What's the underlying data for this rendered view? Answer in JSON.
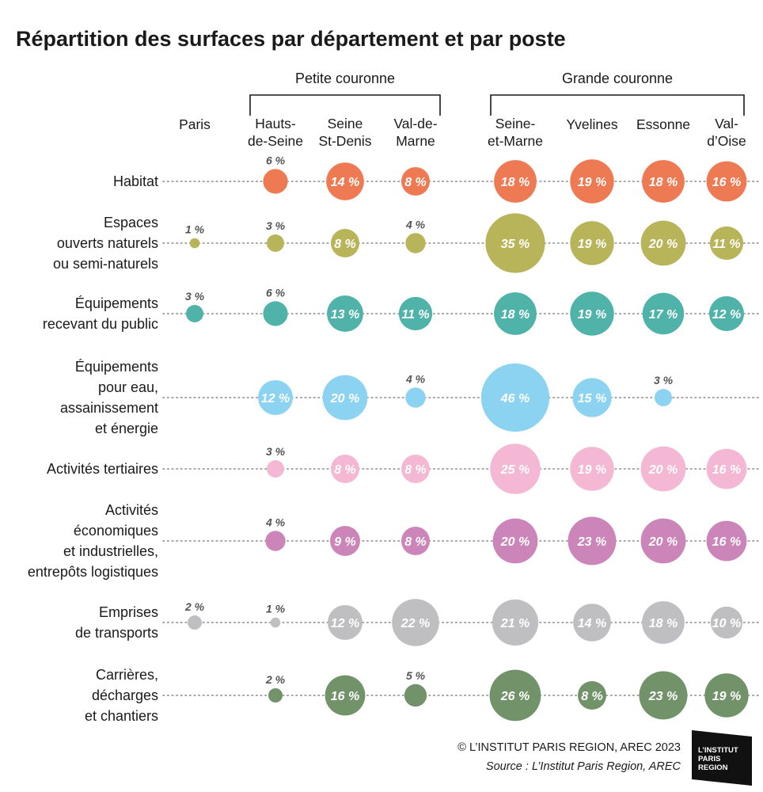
{
  "chart_data": {
    "type": "bubble-matrix",
    "title": "Répartition des surfaces par département et par poste",
    "groups": [
      {
        "label": "Petite couronne",
        "columns": [
          1,
          2,
          3
        ]
      },
      {
        "label": "Grande couronne",
        "columns": [
          4,
          5,
          6,
          7
        ]
      }
    ],
    "columns": [
      [
        "Paris"
      ],
      [
        "Hauts-",
        "de-Seine"
      ],
      [
        "Seine",
        "St-Denis"
      ],
      [
        "Val-de-",
        "Marne"
      ],
      [
        "Seine-",
        "et-Marne"
      ],
      [
        "Yvelines"
      ],
      [
        "Essonne"
      ],
      [
        "Val-",
        "d’Oise"
      ]
    ],
    "rows": [
      {
        "label": [
          "Habitat"
        ],
        "color": "#ee7a53",
        "values": [
          null,
          6,
          14,
          8,
          18,
          19,
          18,
          16
        ]
      },
      {
        "label": [
          "Espaces",
          "ouverts naturels",
          "ou semi-naturels"
        ],
        "color": "#b8b45a",
        "values": [
          1,
          3,
          8,
          4,
          35,
          19,
          20,
          11
        ]
      },
      {
        "label": [
          "Équipements",
          "recevant du public"
        ],
        "color": "#4fb3aa",
        "values": [
          3,
          6,
          13,
          11,
          18,
          19,
          17,
          12
        ]
      },
      {
        "label": [
          "Équipements",
          "pour eau,",
          "assainissement",
          "et énergie"
        ],
        "color": "#8cd3f2",
        "values": [
          null,
          12,
          20,
          4,
          46,
          15,
          3,
          null
        ]
      },
      {
        "label": [
          "Activités tertiaires"
        ],
        "color": "#f5b8d4",
        "values": [
          null,
          3,
          8,
          8,
          25,
          19,
          20,
          16
        ]
      },
      {
        "label": [
          "Activités",
          "économiques",
          "et industrielles,",
          "entrepôts logistiques"
        ],
        "color": "#cc85b8",
        "values": [
          null,
          4,
          9,
          8,
          20,
          23,
          20,
          16
        ]
      },
      {
        "label": [
          "Emprises",
          "de transports"
        ],
        "color": "#bfbfc2",
        "values": [
          2,
          1,
          12,
          22,
          21,
          14,
          18,
          10
        ]
      },
      {
        "label": [
          "Carrières,",
          "décharges",
          "et chantiers"
        ],
        "color": "#72926a",
        "values": [
          null,
          2,
          16,
          5,
          26,
          8,
          23,
          19
        ]
      }
    ],
    "value_suffix": " %",
    "inside_threshold": 8
  },
  "credits": {
    "copyright": "© L’INSTITUT PARIS REGION, AREC 2023",
    "source": "Source : L’Institut Paris Region, AREC"
  },
  "logo": {
    "lines": [
      "L’INSTITUT",
      "PARIS",
      "REGION"
    ]
  }
}
